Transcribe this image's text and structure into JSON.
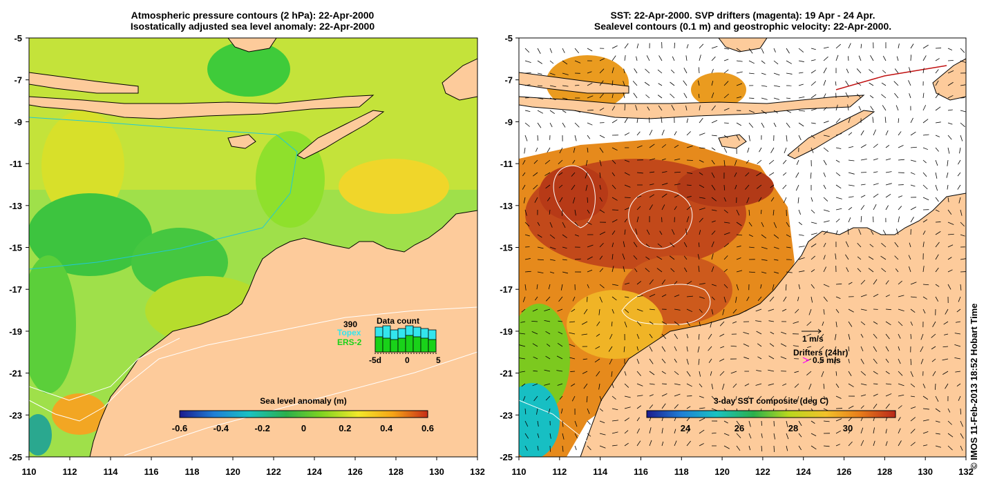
{
  "left_panel": {
    "title_line1": "Atmospheric pressure contours (2 hPa): 22-Apr-2000",
    "title_line2": "Isostatically adjusted sea level anomaly: 22-Apr-2000",
    "x_ticks": [
      "110",
      "112",
      "114",
      "116",
      "118",
      "120",
      "122",
      "124",
      "126",
      "128",
      "130",
      "132"
    ],
    "y_ticks": [
      "-5",
      "-7",
      "-9",
      "-11",
      "-13",
      "-15",
      "-17",
      "-19",
      "-21",
      "-23",
      "-25"
    ],
    "colorbar": {
      "label": "Sea level anomaly (m)",
      "ticks": [
        "-0.6",
        "-0.4",
        "-0.2",
        "0",
        "0.2",
        "0.4",
        "0.6"
      ],
      "colors": [
        "#1b1b8e",
        "#1f7fd6",
        "#19c2c2",
        "#2bb04b",
        "#7ed321",
        "#f2e82a",
        "#f6a417",
        "#c62d17"
      ]
    },
    "data_count": {
      "title": "Data count",
      "total": "390",
      "topex_label": "Topex",
      "ers_label": "ERS-2",
      "axis_labels": [
        "-5d",
        "0",
        "5"
      ],
      "topex_values": [
        0.9,
        0.95,
        0.8,
        0.85,
        0.95,
        0.9,
        0.85,
        0.8
      ],
      "ers_values": [
        0.55,
        0.5,
        0.45,
        0.5,
        0.6,
        0.55,
        0.5,
        0.45
      ],
      "topex_color": "#33e5ee",
      "ers_color": "#19d219"
    }
  },
  "right_panel": {
    "title_line1": "SST: 22-Apr-2000. SVP drifters (magenta): 19 Apr - 24 Apr.",
    "title_line2": "Sealevel contours (0.1 m) and geostrophic velocity: 22-Apr-2000.",
    "x_ticks": [
      "110",
      "112",
      "114",
      "116",
      "118",
      "120",
      "122",
      "124",
      "126",
      "128",
      "130",
      "132"
    ],
    "y_ticks": [
      "-5",
      "-7",
      "-9",
      "-11",
      "-13",
      "-15",
      "-17",
      "-19",
      "-21",
      "-23",
      "-25"
    ],
    "colorbar": {
      "label": "3-day SST composite (deg C)",
      "ticks": [
        "24",
        "26",
        "28",
        "30"
      ],
      "colors": [
        "#1b1b8e",
        "#1f7fd6",
        "#19c2c2",
        "#2bb04b",
        "#b8d81e",
        "#f2c12a",
        "#e77b1a",
        "#b8281a"
      ]
    },
    "velocity_legend": "1 m/s",
    "drifter_legend_title": "Drifters (24hr)",
    "drifter_legend_value": "0.5 m/s",
    "drifter_color": "#ff00ff"
  },
  "colors": {
    "land": "#fdcb9b",
    "no_data": "#ffffff"
  },
  "credit": "© IMOS 11-Feb-2013 18:52 Hobart Time"
}
